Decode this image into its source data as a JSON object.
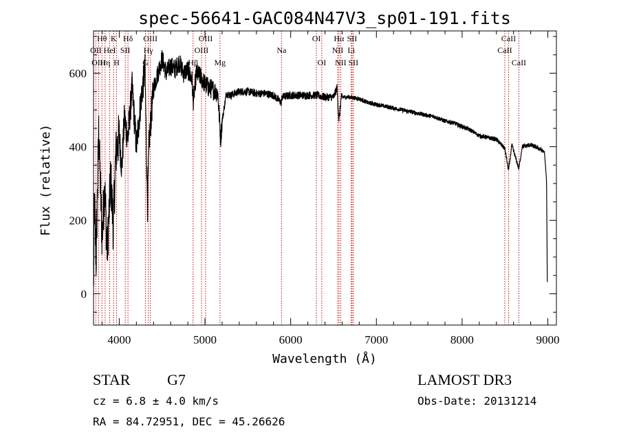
{
  "chart_data": {
    "type": "line",
    "title": "spec-56641-GAC084N47V3_sp01-191.fits",
    "xlabel": "Wavelength (Å)",
    "ylabel": "Flux (relative)",
    "xlim": [
      3700,
      9100
    ],
    "ylim": [
      -85,
      715
    ],
    "x_ticks": [
      4000,
      5000,
      6000,
      7000,
      8000,
      9000
    ],
    "x_tick_labels": [
      "4000",
      "5000",
      "6000",
      "7000",
      "8000",
      "9000"
    ],
    "y_ticks": [
      0,
      200,
      400,
      600
    ],
    "y_tick_labels": [
      "0",
      "200",
      "400",
      "600"
    ],
    "x_minor_step": 200,
    "y_minor_step": 50,
    "series": [
      {
        "name": "flux",
        "color": "#000000",
        "knots": [
          [
            3700,
            0
          ],
          [
            3710,
            250
          ],
          [
            3730,
            90
          ],
          [
            3760,
            440
          ],
          [
            3800,
            150
          ],
          [
            3830,
            300
          ],
          [
            3860,
            110
          ],
          [
            3900,
            320
          ],
          [
            3930,
            180
          ],
          [
            3960,
            380
          ],
          [
            4000,
            430
          ],
          [
            4030,
            340
          ],
          [
            4060,
            480
          ],
          [
            4100,
            420
          ],
          [
            4150,
            560
          ],
          [
            4200,
            400
          ],
          [
            4250,
            520
          ],
          [
            4300,
            610
          ],
          [
            4330,
            240
          ],
          [
            4350,
            420
          ],
          [
            4400,
            560
          ],
          [
            4450,
            600
          ],
          [
            4500,
            640
          ],
          [
            4550,
            600
          ],
          [
            4600,
            620
          ],
          [
            4650,
            610
          ],
          [
            4700,
            630
          ],
          [
            4750,
            600
          ],
          [
            4800,
            610
          ],
          [
            4850,
            580
          ],
          [
            4861,
            520
          ],
          [
            4900,
            600
          ],
          [
            4950,
            590
          ],
          [
            5000,
            570
          ],
          [
            5050,
            560
          ],
          [
            5100,
            555
          ],
          [
            5150,
            545
          ],
          [
            5170,
            470
          ],
          [
            5183,
            420
          ],
          [
            5200,
            470
          ],
          [
            5250,
            545
          ],
          [
            5300,
            540
          ],
          [
            5400,
            550
          ],
          [
            5500,
            550
          ],
          [
            5600,
            545
          ],
          [
            5700,
            545
          ],
          [
            5800,
            540
          ],
          [
            5890,
            520
          ],
          [
            5900,
            535
          ],
          [
            6000,
            540
          ],
          [
            6100,
            540
          ],
          [
            6200,
            540
          ],
          [
            6300,
            540
          ],
          [
            6400,
            535
          ],
          [
            6500,
            535
          ],
          [
            6540,
            560
          ],
          [
            6563,
            470
          ],
          [
            6590,
            535
          ],
          [
            6700,
            535
          ],
          [
            6800,
            530
          ],
          [
            6900,
            520
          ],
          [
            7000,
            515
          ],
          [
            7100,
            510
          ],
          [
            7200,
            505
          ],
          [
            7300,
            500
          ],
          [
            7400,
            495
          ],
          [
            7500,
            490
          ],
          [
            7600,
            485
          ],
          [
            7700,
            480
          ],
          [
            7800,
            470
          ],
          [
            7900,
            465
          ],
          [
            8000,
            455
          ],
          [
            8100,
            445
          ],
          [
            8200,
            430
          ],
          [
            8300,
            425
          ],
          [
            8400,
            420
          ],
          [
            8498,
            395
          ],
          [
            8542,
            335
          ],
          [
            8580,
            405
          ],
          [
            8662,
            340
          ],
          [
            8700,
            400
          ],
          [
            8800,
            405
          ],
          [
            8900,
            395
          ],
          [
            8960,
            385
          ],
          [
            8985,
            310
          ],
          [
            8995,
            0
          ]
        ]
      }
    ],
    "spectral_lines": [
      {
        "name": "Hθ",
        "wavelength": 3798,
        "row": 0
      },
      {
        "name": "OII",
        "wavelength": 3727,
        "row": 1
      },
      {
        "name": "OIII",
        "wavelength": 3760,
        "row": 2
      },
      {
        "name": "Hη",
        "wavelength": 3835,
        "row": 2
      },
      {
        "name": "HeI",
        "wavelength": 3889,
        "row": 1
      },
      {
        "name": "K",
        "wavelength": 3934,
        "row": 0
      },
      {
        "name": "H",
        "wavelength": 3969,
        "row": 2
      },
      {
        "name": "SII",
        "wavelength": 4070,
        "row": 1
      },
      {
        "name": "Hδ",
        "wavelength": 4102,
        "row": 0
      },
      {
        "name": "G",
        "wavelength": 4305,
        "row": 2
      },
      {
        "name": "Hγ",
        "wavelength": 4340,
        "row": 1
      },
      {
        "name": "OIII",
        "wavelength": 4363,
        "row": 0
      },
      {
        "name": "Hβ",
        "wavelength": 4861,
        "row": 2
      },
      {
        "name": "OIII",
        "wavelength": 4959,
        "row": 1
      },
      {
        "name": "OIII",
        "wavelength": 5007,
        "row": 0
      },
      {
        "name": "Mg",
        "wavelength": 5175,
        "row": 2
      },
      {
        "name": "Na",
        "wavelength": 5893,
        "row": 1
      },
      {
        "name": "OI",
        "wavelength": 6300,
        "row": 0
      },
      {
        "name": "OI",
        "wavelength": 6363,
        "row": 2
      },
      {
        "name": "NII",
        "wavelength": 6548,
        "row": 1
      },
      {
        "name": "Hα",
        "wavelength": 6563,
        "row": 0
      },
      {
        "name": "NII",
        "wavelength": 6583,
        "row": 2
      },
      {
        "name": "Li",
        "wavelength": 6707,
        "row": 1
      },
      {
        "name": "SII",
        "wavelength": 6716,
        "row": 0
      },
      {
        "name": "SII",
        "wavelength": 6731,
        "row": 2
      },
      {
        "name": "CaII",
        "wavelength": 8498,
        "row": 1
      },
      {
        "name": "CaII",
        "wavelength": 8542,
        "row": 0
      },
      {
        "name": "CaII",
        "wavelength": 8662,
        "row": 2
      }
    ],
    "line_color": "#cc0000"
  },
  "footer": {
    "object_class": "STAR",
    "subclass": "G7",
    "survey": "LAMOST DR3",
    "redshift_text": "cz = 6.8 ± 4.0 km/s",
    "obs_date_text": "Obs-Date: 20131214",
    "coords_text": "RA =  84.72951, DEC =  45.26626"
  }
}
